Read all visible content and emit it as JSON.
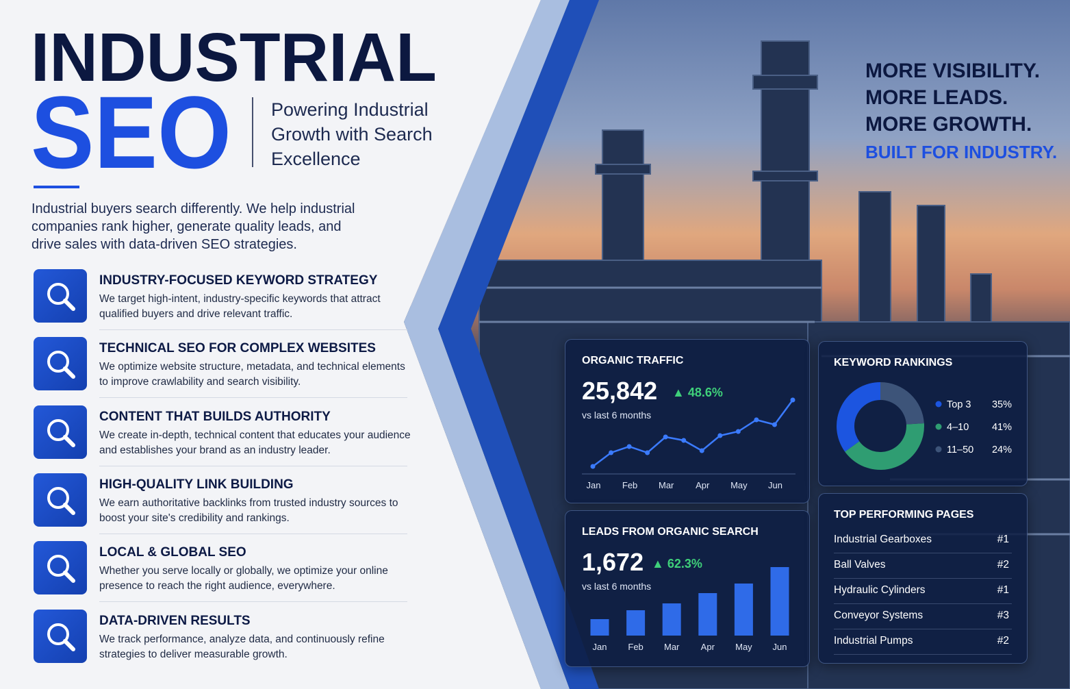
{
  "header": {
    "title_line1": "INDUSTRIAL",
    "title_line2": "SEO",
    "tagline": "Powering Industrial Growth with Search Excellence"
  },
  "intro": "Industrial buyers search differently. We help industrial companies rank higher, generate quality leads, and drive sales with data-driven SEO strategies.",
  "features": [
    {
      "title": "INDUSTRY-FOCUSED KEYWORD STRATEGY",
      "text": "We target high-intent, industry-specific keywords that attract qualified buyers and drive relevant traffic."
    },
    {
      "title": "TECHNICAL SEO FOR COMPLEX WEBSITES",
      "text": "We optimize website structure, metadata, and technical elements to improve crawlability and search visibility."
    },
    {
      "title": "CONTENT THAT BUILDS AUTHORITY",
      "text": "We create in-depth, technical content that educates your audience and establishes your brand as an industry leader."
    },
    {
      "title": "HIGH-QUALITY LINK BUILDING",
      "text": "We earn authoritative backlinks from trusted industry sources to boost your site's credibility and rankings."
    },
    {
      "title": "LOCAL & GLOBAL SEO",
      "text": "Whether you serve locally or globally, we optimize your online presence to reach the right audience, everywhere."
    },
    {
      "title": "DATA-DRIVEN RESULTS",
      "text": "We track performance, analyze data, and continuously refine strategies to deliver measurable growth."
    }
  ],
  "slogan": {
    "lines": [
      "MORE VISIBILITY.",
      "MORE LEADS.",
      "MORE GROWTH."
    ],
    "highlight": "BUILT FOR INDUSTRY."
  },
  "organic_traffic": {
    "title": "ORGANIC TRAFFIC",
    "value": "25,842",
    "change": "48.6%",
    "period": "vs last 6 months",
    "chart_data": {
      "type": "line",
      "categories": [
        "Jan",
        null,
        "Feb",
        null,
        "Mar",
        null,
        "Apr",
        null,
        "May",
        null,
        "Jun",
        null
      ],
      "values": [
        11,
        31,
        40,
        31,
        54,
        49,
        34,
        56,
        62,
        79,
        72,
        108
      ],
      "color": "#3b7bff"
    }
  },
  "leads": {
    "title": "LEADS FROM ORGANIC SEARCH",
    "value": "1,672",
    "change": "62.3%",
    "period": "vs last 6 months",
    "chart_data": {
      "type": "bar",
      "categories": [
        "Jan",
        "Feb",
        "Mar",
        "Apr",
        "May",
        "Jun"
      ],
      "values": [
        24,
        37,
        47,
        62,
        76,
        100
      ],
      "color": "#2f6be8"
    }
  },
  "keyword_rankings": {
    "title": "KEYWORD RANKINGS",
    "chart_data": {
      "type": "pie",
      "categories": [
        "Top 3",
        "4–10",
        "11–50"
      ],
      "values": [
        35,
        41,
        24
      ],
      "value_labels": [
        "35%",
        "41%",
        "24%"
      ],
      "colors": [
        "#1c55e0",
        "#2f9d72",
        "#3d5479"
      ]
    }
  },
  "top_pages": {
    "title": "TOP PERFORMING PAGES",
    "rows": [
      [
        "Industrial Gearboxes",
        "#1"
      ],
      [
        "Ball Valves",
        "#2"
      ],
      [
        "Hydraulic Cylinders",
        "#1"
      ],
      [
        "Conveyor Systems",
        "#3"
      ],
      [
        "Industrial Pumps",
        "#2"
      ]
    ]
  }
}
